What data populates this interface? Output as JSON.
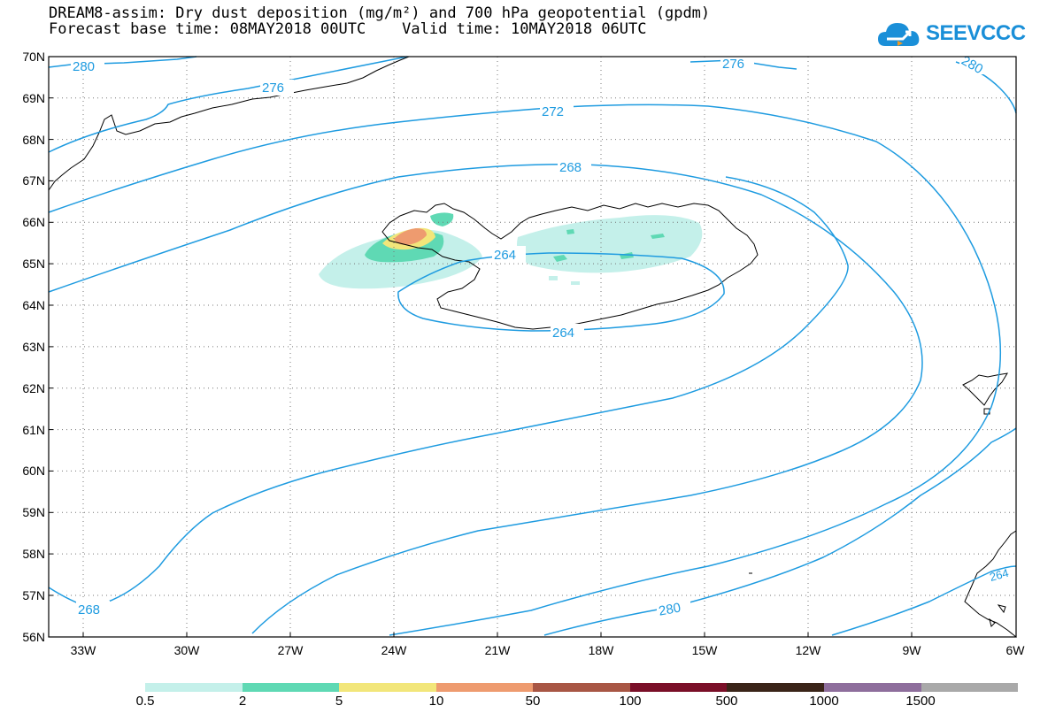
{
  "title": {
    "line1": "DREAM8-assim: Dry dust deposition (mg/m²) and 700 hPa geopotential (gpdm)",
    "line2": "Forecast base time: 08MAY2018 00UTC    Valid time: 10MAY2018 06UTC"
  },
  "brand": {
    "name": "SEEVCCC",
    "icon": "cloud-logo-icon",
    "color": "#1a8fd8"
  },
  "map": {
    "lat_range": [
      56,
      70
    ],
    "lon_range": [
      -34,
      -6
    ],
    "lat_labels": [
      "70N",
      "69N",
      "68N",
      "67N",
      "66N",
      "65N",
      "64N",
      "63N",
      "62N",
      "61N",
      "60N",
      "59N",
      "58N",
      "57N",
      "56N"
    ],
    "lon_labels": [
      "33W",
      "30W",
      "27W",
      "24W",
      "21W",
      "18W",
      "15W",
      "12W",
      "9W",
      "6W"
    ],
    "contour_color": "#1e9be0",
    "contour_labels": [
      "280",
      "276",
      "276",
      "280",
      "272",
      "268",
      "264",
      "264",
      "268",
      "280",
      "264"
    ]
  },
  "legend": {
    "colors": [
      "#c4f0ea",
      "#5fd9b4",
      "#f2e67a",
      "#ee9b6f",
      "#a85644",
      "#7a0f28",
      "#3a2418",
      "#8e6e9c",
      "#a9a9a9"
    ],
    "labels": [
      "0.5",
      "2",
      "5",
      "10",
      "50",
      "100",
      "500",
      "1000",
      "1500"
    ]
  }
}
